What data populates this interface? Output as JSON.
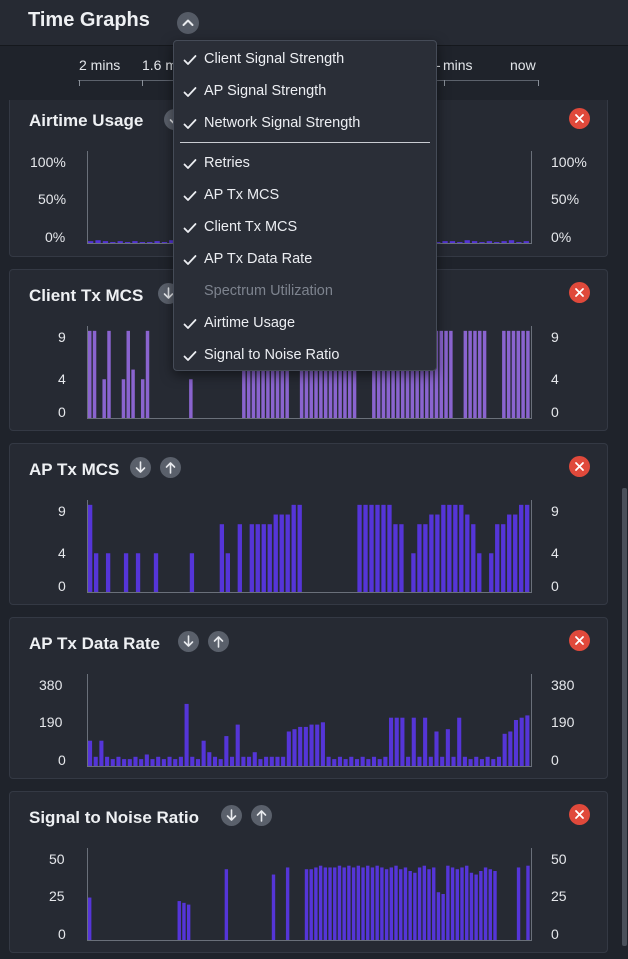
{
  "page": {
    "title": "Time Graphs"
  },
  "colors": {
    "accent_bar": "#5535d8",
    "accent_bar_light": "#8a64cf",
    "close": "#e0493b",
    "button": "#5a606b"
  },
  "icons": {
    "collapse": "chevron-up-icon",
    "move_down": "arrow-down-icon",
    "move_up": "arrow-up-icon",
    "remove": "close-icon",
    "check": "check-icon"
  },
  "time_axis": {
    "ticks": [
      "2 mins",
      "1.6 m",
      "mins",
      "now"
    ],
    "partial_tick_prefix": "- "
  },
  "menu": {
    "items": [
      {
        "label": "Client Signal Strength",
        "checked": true,
        "enabled": true
      },
      {
        "label": "AP Signal Strength",
        "checked": true,
        "enabled": true
      },
      {
        "label": "Network Signal Strength",
        "checked": true,
        "enabled": true
      },
      {
        "label": "Retries",
        "checked": true,
        "enabled": true
      },
      {
        "label": "AP Tx MCS",
        "checked": true,
        "enabled": true
      },
      {
        "label": "Client Tx MCS",
        "checked": true,
        "enabled": true
      },
      {
        "label": "AP Tx Data Rate",
        "checked": true,
        "enabled": true
      },
      {
        "label": "Spectrum Utilization",
        "checked": false,
        "enabled": false
      },
      {
        "label": "Airtime Usage",
        "checked": true,
        "enabled": true
      },
      {
        "label": "Signal to Noise Ratio",
        "checked": true,
        "enabled": true
      }
    ]
  },
  "chart_data": [
    {
      "type": "bar",
      "title": "Airtime Usage",
      "y_ticks": [
        "100%",
        "50%",
        "0%"
      ],
      "ylim": [
        0,
        100
      ],
      "values": [
        2,
        3,
        2,
        1,
        2,
        1,
        2,
        1,
        1,
        2,
        1,
        3,
        1,
        2,
        1,
        1,
        2,
        1,
        2,
        3,
        2,
        1,
        1,
        2,
        1,
        2,
        1,
        1,
        2,
        3,
        2,
        1,
        2,
        1,
        2,
        2,
        1,
        1,
        3,
        2,
        1,
        2,
        1,
        2,
        3,
        2,
        1,
        1,
        2,
        2,
        1,
        3,
        2,
        1,
        2,
        1,
        2,
        3,
        1,
        2
      ]
    },
    {
      "type": "bar",
      "title": "Client Tx MCS",
      "y_ticks": [
        "9",
        "4",
        "0"
      ],
      "ylim": [
        0,
        9.5
      ],
      "values": [
        9,
        9,
        0,
        4,
        9,
        0,
        0,
        4,
        9,
        5,
        0,
        4,
        9,
        0,
        0,
        0,
        0,
        0,
        0,
        0,
        0,
        4,
        0,
        0,
        0,
        0,
        0,
        0,
        0,
        0,
        0,
        0,
        9,
        9,
        9,
        9,
        9,
        9,
        9,
        9,
        9,
        9,
        0,
        0,
        9,
        9,
        9,
        9,
        9,
        9,
        9,
        9,
        9,
        9,
        9,
        9,
        0,
        0,
        0,
        9,
        9,
        9,
        9,
        9,
        9,
        9,
        9,
        9,
        9,
        9,
        9,
        9,
        9,
        9,
        9,
        9,
        0,
        0,
        9,
        9,
        9,
        9,
        9,
        0,
        0,
        0,
        9,
        9,
        9,
        9,
        9,
        9
      ]
    },
    {
      "type": "bar",
      "title": "AP Tx MCS",
      "y_ticks": [
        "9",
        "4",
        "0"
      ],
      "ylim": [
        0,
        9.5
      ],
      "values": [
        9,
        4,
        0,
        4,
        0,
        0,
        4,
        0,
        4,
        0,
        0,
        4,
        0,
        0,
        0,
        0,
        0,
        4,
        0,
        0,
        0,
        0,
        7,
        4,
        0,
        7,
        0,
        7,
        7,
        7,
        7,
        8,
        8,
        8,
        9,
        9,
        0,
        0,
        0,
        0,
        0,
        0,
        0,
        0,
        0,
        9,
        9,
        9,
        9,
        9,
        9,
        7,
        7,
        0,
        4,
        7,
        7,
        8,
        8,
        9,
        9,
        9,
        9,
        8,
        7,
        4,
        0,
        4,
        7,
        7,
        8,
        8,
        9,
        9
      ]
    },
    {
      "type": "bar",
      "title": "AP Tx Data Rate",
      "y_ticks": [
        "380",
        "190",
        "0"
      ],
      "ylim": [
        0,
        400
      ],
      "values": [
        110,
        40,
        110,
        40,
        30,
        40,
        30,
        30,
        40,
        30,
        50,
        30,
        40,
        30,
        40,
        30,
        40,
        270,
        40,
        30,
        110,
        60,
        40,
        30,
        130,
        40,
        180,
        40,
        40,
        60,
        30,
        40,
        40,
        40,
        40,
        150,
        160,
        170,
        170,
        180,
        180,
        190,
        40,
        30,
        40,
        30,
        40,
        30,
        40,
        30,
        40,
        30,
        40,
        210,
        210,
        210,
        40,
        210,
        40,
        210,
        40,
        150,
        40,
        160,
        40,
        210,
        40,
        30,
        40,
        30,
        40,
        30,
        40,
        140,
        150,
        200,
        210,
        220
      ]
    },
    {
      "type": "bar",
      "title": "Signal to Noise Ratio",
      "y_ticks": [
        "50",
        "25",
        "0"
      ],
      "ylim": [
        0,
        52
      ],
      "values": [
        24,
        0,
        0,
        0,
        0,
        0,
        0,
        0,
        0,
        0,
        0,
        0,
        0,
        0,
        0,
        0,
        0,
        0,
        0,
        22,
        21,
        20,
        0,
        0,
        0,
        0,
        0,
        0,
        0,
        40,
        0,
        0,
        0,
        0,
        0,
        0,
        0,
        0,
        0,
        37,
        0,
        0,
        41,
        0,
        0,
        0,
        40,
        40,
        41,
        42,
        41,
        41,
        41,
        42,
        41,
        42,
        41,
        42,
        41,
        42,
        41,
        42,
        41,
        40,
        41,
        42,
        40,
        41,
        39,
        38,
        41,
        42,
        40,
        41,
        27,
        26,
        42,
        41,
        40,
        41,
        42,
        38,
        37,
        39,
        41,
        40,
        39,
        0,
        0,
        0,
        0,
        41,
        0,
        42
      ]
    }
  ]
}
